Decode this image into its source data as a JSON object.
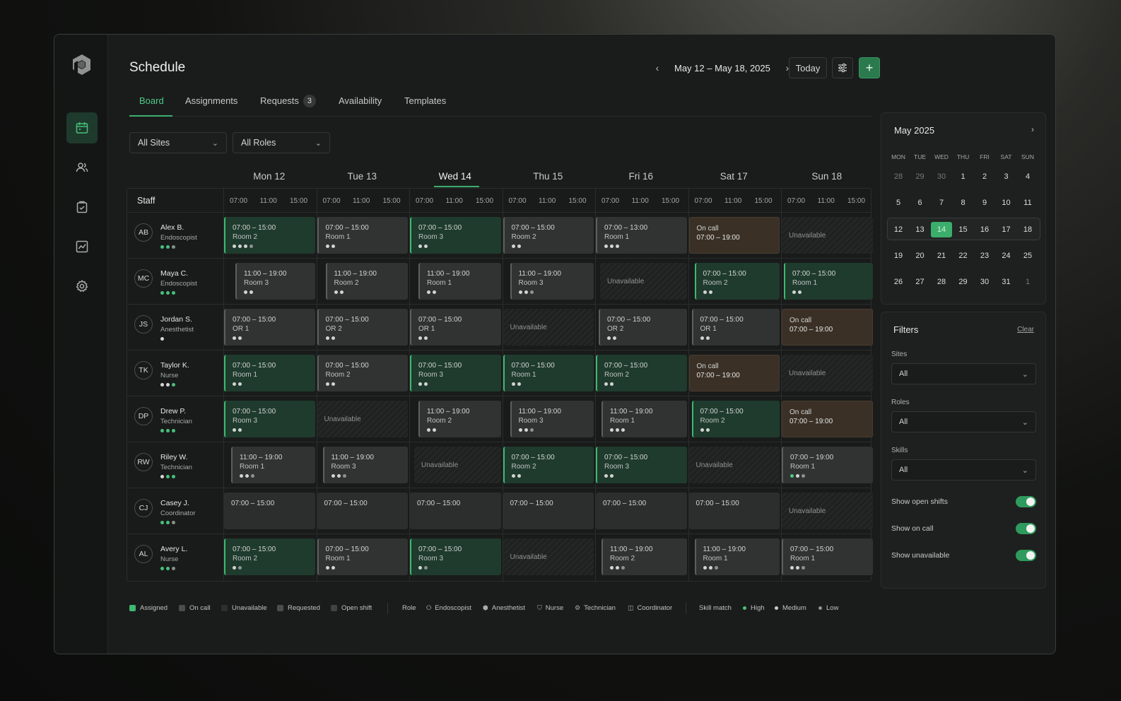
{
  "page": {
    "title": "Schedule"
  },
  "date_nav": {
    "range": "May 12 – May 18, 2025",
    "today_label": "Today"
  },
  "tabs": [
    {
      "label": "Board",
      "active": true
    },
    {
      "label": "Assignments"
    },
    {
      "label": "Requests",
      "badge": "3"
    },
    {
      "label": "Availability"
    },
    {
      "label": "Templates"
    }
  ],
  "toolbar_filters": {
    "sites": "All Sites",
    "roles": "All Roles"
  },
  "board": {
    "staff_header": "Staff",
    "days": [
      "Mon 12",
      "Tue 13",
      "Wed 14",
      "Thu 15",
      "Fri 16",
      "Sat 17",
      "Sun 18"
    ],
    "active_day": 2,
    "hours": [
      "07:00",
      "11:00",
      "15:00"
    ],
    "staff": [
      {
        "initials": "AB",
        "name": "Alex B.",
        "role": "Endoscopist",
        "skill": "g g m",
        "shifts": [
          {
            "type": "assigned",
            "time": "07:00 – 15:00",
            "room": "Room 2",
            "dots": "w w w m",
            "off": 0
          },
          {
            "type": "requested",
            "time": "07:00 – 15:00",
            "room": "Room 1",
            "dots": "w w",
            "off": 0
          },
          {
            "type": "assigned",
            "time": "07:00 – 15:00",
            "room": "Room 3",
            "dots": "w w",
            "off": 0
          },
          {
            "type": "requested",
            "time": "07:00 – 15:00",
            "room": "Room 2",
            "dots": "w w",
            "off": 0
          },
          {
            "type": "requested",
            "time": "07:00 – 13:00",
            "room": "Room 1",
            "dots": "w w w",
            "off": 0
          },
          {
            "type": "oncall",
            "time": "On call",
            "room": "07:00 – 19:00",
            "off": 0
          },
          {
            "type": "unavail",
            "time": "Unavailable",
            "off": 0
          }
        ]
      },
      {
        "initials": "MC",
        "name": "Maya C.",
        "role": "Endoscopist",
        "skill": "g g g",
        "shifts": [
          {
            "type": "requested",
            "time": "11:00 – 19:00",
            "room": "Room 3",
            "dots": "w w",
            "off": 16
          },
          {
            "type": "requested",
            "time": "11:00 – 19:00",
            "room": "Room 2",
            "dots": "w w",
            "off": 12
          },
          {
            "type": "requested",
            "time": "11:00 – 19:00",
            "room": "Room 1",
            "dots": "w w",
            "off": 12
          },
          {
            "type": "requested",
            "time": "11:00 – 19:00",
            "room": "Room 3",
            "dots": "w w m",
            "off": 10
          },
          {
            "type": "unavail",
            "time": "Unavailable",
            "off": 6
          },
          {
            "type": "assigned",
            "time": "07:00 – 15:00",
            "room": "Room 2",
            "dots": "w w",
            "off": 8
          },
          {
            "type": "assigned",
            "time": "07:00 – 15:00",
            "room": "Room 1",
            "dots": "w w",
            "off": 3
          }
        ]
      },
      {
        "initials": "JS",
        "name": "Jordan S.",
        "role": "Anesthetist",
        "skill": "w",
        "shifts": [
          {
            "type": "requested",
            "time": "07:00 – 15:00",
            "room": "OR 1",
            "dots": "w w",
            "off": 0
          },
          {
            "type": "requested",
            "time": "07:00 – 15:00",
            "room": "OR 2",
            "dots": "w w",
            "off": 0
          },
          {
            "type": "requested",
            "time": "07:00 – 15:00",
            "room": "OR 1",
            "dots": "w w",
            "off": 0
          },
          {
            "type": "unavail",
            "time": "Unavailable",
            "off": 0
          },
          {
            "type": "requested",
            "time": "07:00 – 15:00",
            "room": "OR 2",
            "dots": "w w",
            "off": 4
          },
          {
            "type": "requested",
            "time": "07:00 – 15:00",
            "room": "OR 1",
            "dots": "w w",
            "off": 4
          },
          {
            "type": "oncall",
            "time": "On call",
            "room": "07:00 – 19:00",
            "off": 0
          }
        ]
      },
      {
        "initials": "TK",
        "name": "Taylor K.",
        "role": "Nurse",
        "skill": "w w g",
        "shifts": [
          {
            "type": "assigned",
            "time": "07:00 – 15:00",
            "room": "Room 1",
            "dots": "w w",
            "off": 0
          },
          {
            "type": "requested",
            "time": "07:00 – 15:00",
            "room": "Room 2",
            "dots": "w w",
            "off": 0
          },
          {
            "type": "assigned",
            "time": "07:00 – 15:00",
            "room": "Room 3",
            "dots": "w w",
            "off": 0
          },
          {
            "type": "assigned",
            "time": "07:00 – 15:00",
            "room": "Room 1",
            "dots": "w w",
            "off": 0
          },
          {
            "type": "assigned",
            "time": "07:00 – 15:00",
            "room": "Room 2",
            "dots": "w w",
            "off": 0
          },
          {
            "type": "oncall",
            "time": "On call",
            "room": "07:00 – 19:00",
            "off": 0
          },
          {
            "type": "unavail",
            "time": "Unavailable",
            "off": 0
          }
        ]
      },
      {
        "initials": "DP",
        "name": "Drew P.",
        "role": "Technician",
        "skill": "g g g",
        "shifts": [
          {
            "type": "assigned",
            "time": "07:00 – 15:00",
            "room": "Room 3",
            "dots": "w w",
            "off": 0
          },
          {
            "type": "unavail",
            "time": "Unavailable",
            "off": 0
          },
          {
            "type": "requested",
            "time": "11:00 – 19:00",
            "room": "Room 2",
            "dots": "w w",
            "off": 12
          },
          {
            "type": "requested",
            "time": "11:00 – 19:00",
            "room": "Room 3",
            "dots": "w w m",
            "off": 10
          },
          {
            "type": "requested",
            "time": "11:00 – 19:00",
            "room": "Room 1",
            "dots": "w w w",
            "off": 8
          },
          {
            "type": "assigned",
            "time": "07:00 – 15:00",
            "room": "Room 2",
            "dots": "w w",
            "off": 4
          },
          {
            "type": "oncall",
            "time": "On call",
            "room": "07:00 – 19:00",
            "off": 0
          }
        ]
      },
      {
        "initials": "RW",
        "name": "Riley W.",
        "role": "Technician",
        "skill": "w g g",
        "shifts": [
          {
            "type": "requested",
            "time": "11:00 – 19:00",
            "room": "Room 1",
            "dots": "w w m",
            "off": 10
          },
          {
            "type": "requested",
            "time": "11:00 – 19:00",
            "room": "Room 3",
            "dots": "w w m",
            "off": 8
          },
          {
            "type": "unavail",
            "time": "Unavailable",
            "off": 6
          },
          {
            "type": "assigned",
            "time": "07:00 – 15:00",
            "room": "Room 2",
            "dots": "w w",
            "off": 0
          },
          {
            "type": "assigned",
            "time": "07:00 – 15:00",
            "room": "Room 3",
            "dots": "w w",
            "off": 0
          },
          {
            "type": "unavail",
            "time": "Unavailable",
            "off": 0
          },
          {
            "type": "requested",
            "time": "07:00 – 19:00",
            "room": "Room 1",
            "dots": "g w m",
            "off": 0
          }
        ]
      },
      {
        "initials": "CJ",
        "name": "Casey J.",
        "role": "Coordinator",
        "skill": "g g m",
        "shifts": [
          {
            "type": "open",
            "time": "07:00 – 15:00",
            "off": 0
          },
          {
            "type": "open",
            "time": "07:00 – 15:00",
            "off": 0
          },
          {
            "type": "open",
            "time": "07:00 – 15:00",
            "off": 0
          },
          {
            "type": "open",
            "time": "07:00 – 15:00",
            "off": 0
          },
          {
            "type": "open",
            "time": "07:00 – 15:00",
            "off": 0
          },
          {
            "type": "open",
            "time": "07:00 – 15:00",
            "off": 0
          },
          {
            "type": "unavail",
            "time": "Unavailable",
            "off": 0
          }
        ]
      },
      {
        "initials": "AL",
        "name": "Avery L.",
        "role": "Nurse",
        "skill": "g g m",
        "shifts": [
          {
            "type": "assigned",
            "time": "07:00 – 15:00",
            "room": "Room 2",
            "dots": "w m",
            "off": 0
          },
          {
            "type": "requested",
            "time": "07:00 – 15:00",
            "room": "Room 1",
            "dots": "w w",
            "off": 0
          },
          {
            "type": "assigned",
            "time": "07:00 – 15:00",
            "room": "Room 3",
            "dots": "w m",
            "off": 0
          },
          {
            "type": "unavail",
            "time": "Unavailable",
            "off": 0
          },
          {
            "type": "requested",
            "time": "11:00 – 19:00",
            "room": "Room 2",
            "dots": "w w m",
            "off": 8
          },
          {
            "type": "requested",
            "time": "11:00 – 19:00",
            "room": "Room 1",
            "dots": "w w m",
            "off": 8
          },
          {
            "type": "requested",
            "time": "07:00 – 15:00",
            "room": "Room 1",
            "dots": "w w m",
            "off": 0
          }
        ]
      }
    ]
  },
  "legend": {
    "status": [
      "Assigned",
      "On call",
      "Unavailable",
      "Requested",
      "Open shift"
    ],
    "role_title": "Role",
    "roles": [
      "Endoscopist",
      "Anesthetist",
      "Nurse",
      "Technician",
      "Coordinator"
    ],
    "skill_title": "Skill match",
    "skills": [
      "High",
      "Medium",
      "Low"
    ],
    "colors": {
      "assigned": "#3fb872",
      "oncall": "#4a4d4c",
      "unavail": "#2c2f2e",
      "requested": "#4a4d4c",
      "open": "#404342"
    }
  },
  "calendar": {
    "month": "May 2025",
    "dow": [
      "MON",
      "TUE",
      "WED",
      "THU",
      "FRI",
      "SAT",
      "SUN"
    ],
    "weeks": [
      [
        "28",
        "29",
        "30",
        "1",
        "2",
        "3",
        "4"
      ],
      [
        "5",
        "6",
        "7",
        "8",
        "9",
        "10",
        "11"
      ],
      [
        "12",
        "13",
        "14",
        "15",
        "16",
        "17",
        "18"
      ],
      [
        "19",
        "20",
        "21",
        "22",
        "23",
        "24",
        "25"
      ],
      [
        "26",
        "27",
        "28",
        "29",
        "30",
        "31",
        "1"
      ]
    ],
    "today": "14"
  },
  "filters": {
    "title": "Filters",
    "clear": "Clear",
    "sites_label": "Sites",
    "sites_value": "All",
    "roles_label": "Roles",
    "roles_value": "All",
    "skills_label": "Skills",
    "skills_value": "All",
    "toggles": [
      {
        "label": "Show open shifts",
        "on": true
      },
      {
        "label": "Show on call",
        "on": true
      },
      {
        "label": "Show unavailable",
        "on": true
      }
    ]
  }
}
